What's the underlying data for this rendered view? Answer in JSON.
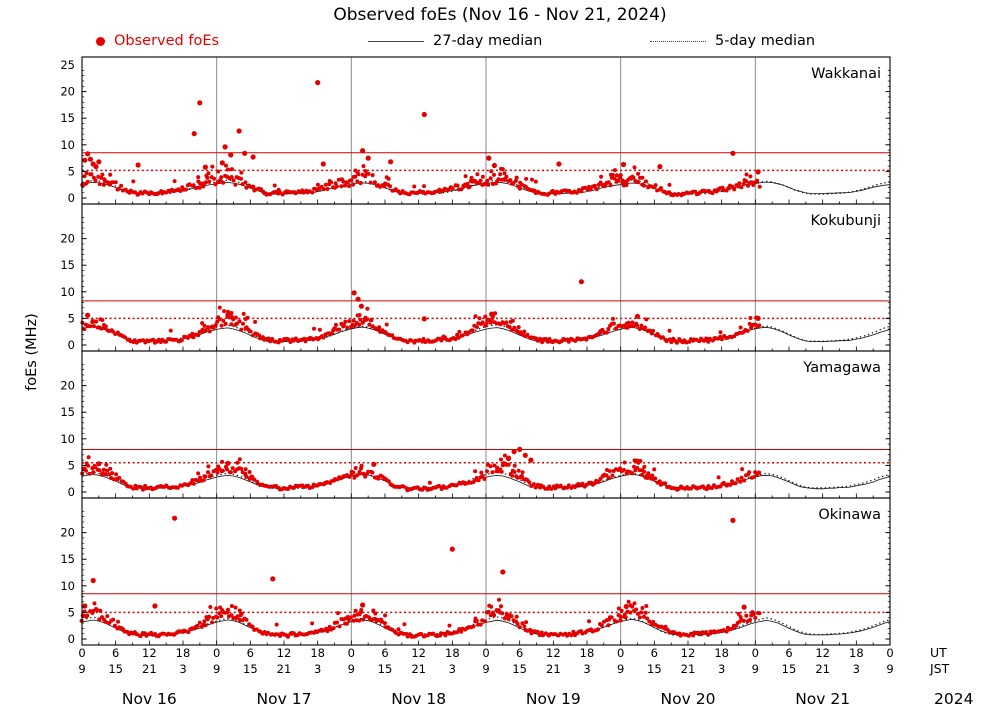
{
  "title": "Observed foEs (Nov 16 - Nov 21, 2024)",
  "ylabel": "foEs (MHz)",
  "legend": {
    "observed": "Observed foEs",
    "median27": "27-day median",
    "median5": "5-day median"
  },
  "colors": {
    "observed": "#e50000",
    "median": "#111111",
    "threshold": "#d40000",
    "grid": "#8a8a8a",
    "frame": "#000000"
  },
  "x_axis": {
    "days": [
      "Nov 16",
      "Nov 17",
      "Nov 18",
      "Nov 19",
      "Nov 20",
      "Nov 21"
    ],
    "year": "2024",
    "ut": "UT",
    "jst": "JST",
    "tick_ut": [
      "0",
      "6",
      "12",
      "18"
    ],
    "tick_jst": [
      "9",
      "15",
      "21",
      "3"
    ],
    "hours_total": 144,
    "observed_end_hour": 121
  },
  "chart_data": [
    {
      "type": "scatter",
      "station": "Wakkanai",
      "ylim": [
        0,
        25
      ],
      "yticks": [
        0,
        5,
        10,
        15,
        20,
        25
      ],
      "threshold_solid": 8.5,
      "threshold_dotted": 5.2,
      "scatter_jitter": 0.55,
      "day_scale": [
        1.0,
        0.95,
        1.05,
        1.0,
        0.9,
        0.85
      ],
      "observed_diurnal": [
        3.2,
        3.5,
        3.7,
        3.6,
        3.2,
        2.8,
        2.3,
        1.8,
        1.3,
        1.0,
        0.9,
        0.9,
        1.0,
        1.0,
        1.1,
        1.2,
        1.3,
        1.5,
        1.7,
        2.0,
        2.3,
        2.6,
        2.9,
        3.1
      ],
      "median27_diurnal": [
        2.6,
        2.8,
        2.9,
        2.8,
        2.6,
        2.3,
        1.9,
        1.5,
        1.2,
        0.9,
        0.8,
        0.8,
        0.8,
        0.9,
        0.9,
        1.0,
        1.0,
        1.1,
        1.3,
        1.5,
        1.8,
        2.1,
        2.3,
        2.5
      ],
      "median5_diurnal": [
        2.9,
        3.1,
        3.2,
        3.1,
        2.8,
        2.5,
        2.1,
        1.6,
        1.3,
        1.0,
        0.9,
        0.9,
        0.9,
        0.9,
        1.0,
        1.0,
        1.1,
        1.2,
        1.4,
        1.6,
        1.9,
        2.2,
        2.5,
        2.7
      ],
      "outliers": [
        [
          0.5,
          7.1
        ],
        [
          1,
          8.3
        ],
        [
          1.5,
          7.3
        ],
        [
          2,
          6.4
        ],
        [
          2.5,
          5.9
        ],
        [
          3,
          6.8
        ],
        [
          10,
          6.2
        ],
        [
          20,
          12.1
        ],
        [
          21,
          17.9
        ],
        [
          22,
          5.8
        ],
        [
          25,
          6.6
        ],
        [
          25.5,
          9.6
        ],
        [
          26.5,
          8.1
        ],
        [
          28,
          12.6
        ],
        [
          29,
          8.4
        ],
        [
          30.5,
          7.7
        ],
        [
          42,
          21.7
        ],
        [
          43,
          6.4
        ],
        [
          50,
          8.9
        ],
        [
          51,
          7.5
        ],
        [
          55,
          6.8
        ],
        [
          61,
          15.7
        ],
        [
          72.5,
          7.5
        ],
        [
          73.5,
          6.1
        ],
        [
          85,
          6.4
        ],
        [
          96.5,
          6.3
        ],
        [
          103,
          5.9
        ],
        [
          116,
          8.4
        ],
        [
          120.5,
          4.9
        ]
      ]
    },
    {
      "type": "scatter",
      "station": "Kokubunji",
      "ylim": [
        0,
        25
      ],
      "yticks": [
        0,
        5,
        10,
        15,
        20
      ],
      "threshold_solid": 8.3,
      "threshold_dotted": 5.0,
      "scatter_jitter": 0.4,
      "day_scale": [
        0.9,
        1.05,
        1.0,
        1.05,
        0.95,
        0.9
      ],
      "observed_diurnal": [
        3.9,
        4.2,
        4.4,
        4.1,
        3.6,
        3.0,
        2.4,
        1.8,
        1.2,
        0.9,
        0.8,
        0.8,
        0.8,
        0.8,
        0.9,
        0.9,
        1.0,
        1.1,
        1.3,
        1.6,
        2.0,
        2.5,
        3.1,
        3.6
      ],
      "median27_diurnal": [
        3.0,
        3.2,
        3.3,
        3.1,
        2.8,
        2.4,
        1.9,
        1.5,
        1.1,
        0.8,
        0.7,
        0.7,
        0.7,
        0.8,
        0.8,
        0.9,
        0.9,
        1.0,
        1.2,
        1.4,
        1.7,
        2.0,
        2.4,
        2.7
      ],
      "median5_diurnal": [
        3.3,
        3.5,
        3.6,
        3.4,
        3.0,
        2.6,
        2.1,
        1.6,
        1.2,
        0.9,
        0.8,
        0.8,
        0.8,
        0.8,
        0.9,
        0.9,
        1.0,
        1.1,
        1.3,
        1.5,
        1.8,
        2.2,
        2.6,
        3.0
      ],
      "outliers": [
        [
          1,
          5.6
        ],
        [
          26,
          5.7
        ],
        [
          48.5,
          9.8
        ],
        [
          49.2,
          8.6
        ],
        [
          49.8,
          7.3
        ],
        [
          61,
          4.9
        ],
        [
          73,
          5.8
        ],
        [
          89,
          11.9
        ],
        [
          99,
          5.4
        ],
        [
          120.5,
          5.0
        ]
      ]
    },
    {
      "type": "scatter",
      "station": "Yamagawa",
      "ylim": [
        0,
        25
      ],
      "yticks": [
        0,
        5,
        10,
        15,
        20
      ],
      "threshold_solid": 8.0,
      "threshold_dotted": 5.5,
      "scatter_jitter": 0.45,
      "day_scale": [
        1.0,
        1.0,
        0.85,
        1.1,
        0.95,
        0.9
      ],
      "observed_diurnal": [
        3.7,
        4.1,
        4.4,
        4.2,
        3.8,
        3.2,
        2.6,
        2.0,
        1.4,
        1.0,
        0.8,
        0.8,
        0.8,
        0.8,
        0.9,
        0.9,
        1.0,
        1.1,
        1.3,
        1.6,
        2.0,
        2.4,
        2.9,
        3.4
      ],
      "median27_diurnal": [
        2.9,
        3.1,
        3.2,
        3.1,
        2.8,
        2.4,
        2.0,
        1.5,
        1.1,
        0.9,
        0.8,
        0.7,
        0.7,
        0.8,
        0.8,
        0.9,
        0.9,
        1.0,
        1.2,
        1.4,
        1.6,
        1.9,
        2.3,
        2.6
      ],
      "median5_diurnal": [
        3.1,
        3.3,
        3.5,
        3.3,
        3.0,
        2.6,
        2.1,
        1.6,
        1.2,
        0.9,
        0.8,
        0.8,
        0.8,
        0.8,
        0.9,
        0.9,
        1.0,
        1.1,
        1.3,
        1.5,
        1.8,
        2.1,
        2.5,
        2.8
      ],
      "outliers": [
        [
          3,
          5.3
        ],
        [
          26,
          5.4
        ],
        [
          52,
          5.2
        ],
        [
          76,
          6.3
        ],
        [
          77,
          7.6
        ],
        [
          78,
          8.0
        ],
        [
          79,
          6.9
        ],
        [
          80,
          6.0
        ],
        [
          99,
          5.8
        ]
      ]
    },
    {
      "type": "scatter",
      "station": "Okinawa",
      "ylim": [
        0,
        25
      ],
      "yticks": [
        0,
        5,
        10,
        15,
        20
      ],
      "threshold_solid": 8.5,
      "threshold_dotted": 5.0,
      "scatter_jitter": 0.42,
      "day_scale": [
        1.0,
        0.95,
        0.9,
        1.05,
        1.1,
        0.95
      ],
      "observed_diurnal": [
        4.1,
        4.5,
        4.9,
        4.7,
        4.2,
        3.5,
        2.7,
        2.0,
        1.4,
        1.0,
        0.9,
        0.8,
        0.8,
        0.8,
        0.9,
        0.9,
        1.0,
        1.1,
        1.3,
        1.6,
        2.0,
        2.6,
        3.2,
        3.7
      ],
      "median27_diurnal": [
        3.2,
        3.4,
        3.6,
        3.4,
        3.1,
        2.6,
        2.1,
        1.6,
        1.2,
        0.9,
        0.8,
        0.8,
        0.8,
        0.8,
        0.9,
        0.9,
        1.0,
        1.1,
        1.3,
        1.5,
        1.8,
        2.1,
        2.5,
        2.9
      ],
      "median5_diurnal": [
        3.4,
        3.7,
        3.9,
        3.7,
        3.3,
        2.8,
        2.3,
        1.7,
        1.3,
        1.0,
        0.9,
        0.8,
        0.8,
        0.9,
        0.9,
        1.0,
        1.0,
        1.2,
        1.4,
        1.6,
        1.9,
        2.3,
        2.7,
        3.1
      ],
      "outliers": [
        [
          0.5,
          6.2
        ],
        [
          2,
          11.0
        ],
        [
          13,
          6.2
        ],
        [
          16.5,
          22.7
        ],
        [
          34,
          11.3
        ],
        [
          50,
          6.4
        ],
        [
          66,
          16.9
        ],
        [
          75,
          12.6
        ],
        [
          97,
          6.1
        ],
        [
          116,
          22.3
        ],
        [
          118,
          6.0
        ]
      ]
    }
  ]
}
